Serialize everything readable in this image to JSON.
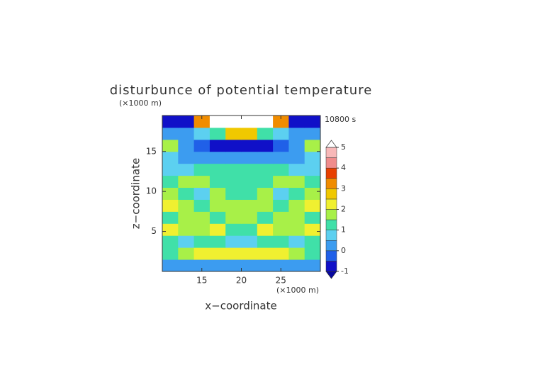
{
  "chart_data": {
    "type": "contour",
    "title": "disturbunce of potential temperature",
    "y_unit": "(×1000 m)",
    "x_unit": "(×1000 m)",
    "xlabel": "x−coordinate",
    "ylabel": "z−coordinate",
    "annotation": "10800 s",
    "xlim": [
      10,
      30
    ],
    "ylim": [
      0,
      19.5
    ],
    "xticks": [
      15,
      20,
      25
    ],
    "yticks": [
      5,
      10,
      15
    ],
    "x": [
      11,
      13,
      15,
      17,
      19,
      21,
      23,
      25,
      27,
      29
    ],
    "y": [
      0.75,
      2.25,
      3.75,
      5.25,
      6.75,
      8.25,
      9.75,
      11.25,
      12.75,
      14.25,
      15.75,
      17.25,
      18.75
    ],
    "z": [
      [
        0.1,
        0.2,
        0.3,
        0.3,
        0.4,
        0.4,
        0.3,
        0.3,
        0.2,
        0.1
      ],
      [
        1.3,
        1.6,
        2.2,
        2.3,
        2.1,
        2.1,
        2.3,
        2.2,
        1.6,
        1.3
      ],
      [
        1.2,
        0.9,
        1.3,
        1.0,
        0.7,
        0.7,
        1.0,
        1.3,
        0.9,
        1.2
      ],
      [
        2.1,
        1.8,
        1.6,
        2.2,
        1.3,
        1.3,
        2.2,
        1.6,
        1.8,
        2.1
      ],
      [
        1.4,
        1.6,
        1.7,
        1.4,
        1.8,
        1.8,
        1.4,
        1.7,
        1.6,
        1.4
      ],
      [
        2.2,
        1.8,
        1.4,
        1.6,
        1.5,
        1.5,
        1.6,
        1.4,
        1.8,
        2.2
      ],
      [
        1.6,
        1.3,
        0.8,
        1.5,
        1.2,
        1.2,
        1.5,
        0.8,
        1.3,
        1.6
      ],
      [
        1.2,
        1.6,
        1.6,
        1.3,
        1.4,
        1.4,
        1.3,
        1.6,
        1.6,
        1.2
      ],
      [
        0.9,
        0.7,
        1.0,
        1.2,
        1.3,
        1.3,
        1.2,
        1.0,
        0.7,
        0.9
      ],
      [
        0.6,
        0.2,
        0.4,
        0.1,
        0.3,
        0.3,
        0.1,
        0.4,
        0.2,
        0.6
      ],
      [
        1.6,
        0.3,
        -0.5,
        -0.7,
        -0.6,
        -0.6,
        -0.7,
        -0.5,
        0.3,
        1.6
      ],
      [
        0.2,
        0.0,
        0.6,
        1.2,
        2.8,
        2.8,
        1.2,
        0.6,
        0.0,
        0.2
      ],
      [
        -0.8,
        -0.6,
        3.2,
        5.5,
        5.6,
        5.6,
        5.5,
        3.2,
        -0.6,
        -0.8
      ]
    ],
    "levels": [
      -1,
      -0.5,
      0,
      0.5,
      1,
      1.5,
      2,
      2.5,
      3,
      3.5,
      4,
      4.5,
      5
    ],
    "colors": [
      "#1010c8",
      "#2060e8",
      "#3c9cf0",
      "#5cd0f0",
      "#40e0a8",
      "#a8f048",
      "#f0f030",
      "#f0c800",
      "#f08c00",
      "#e84000",
      "#f08c8c",
      "#f8b8b8"
    ],
    "under_color": "#0808a0",
    "over_color": "#ffffff",
    "cbar_ticks": [
      -1,
      0,
      1,
      2,
      3,
      4,
      5
    ]
  }
}
